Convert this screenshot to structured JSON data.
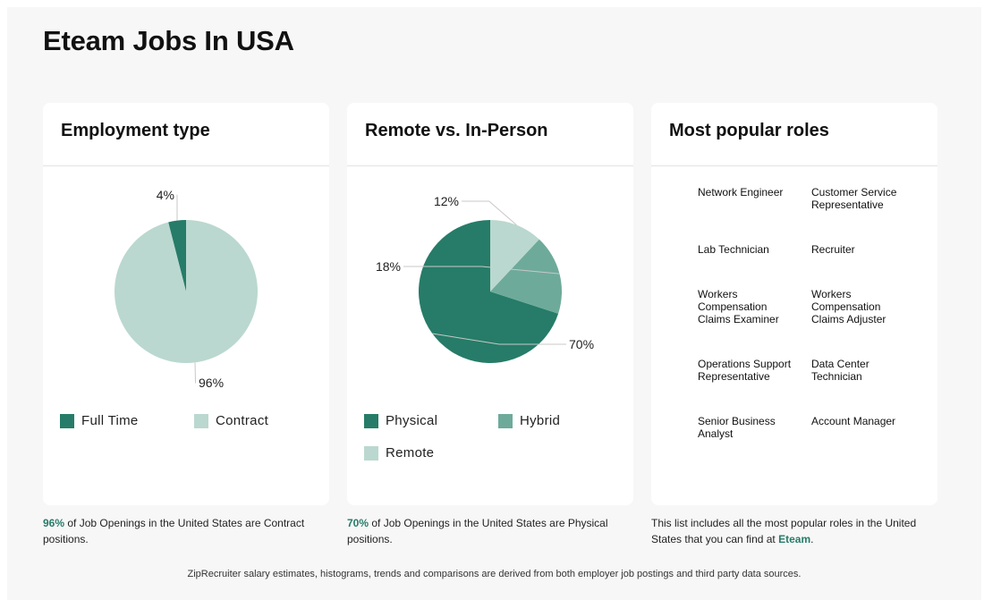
{
  "page": {
    "title": "Eteam Jobs In USA"
  },
  "colors": {
    "dark": "#267c68",
    "mid": "#6eaa9a",
    "light": "#bad8cf",
    "accent": "#267c68"
  },
  "employment": {
    "title": "Employment type",
    "legend": [
      "Full Time",
      "Contract"
    ],
    "caption_pct": "96%",
    "caption_text": " of Job Openings in the United States are Contract positions."
  },
  "remote": {
    "title": "Remote vs. In-Person",
    "legend": [
      "Physical",
      "Hybrid",
      "Remote"
    ],
    "caption_pct": "70%",
    "caption_text": " of Job Openings in the United States are Physical positions."
  },
  "roles": {
    "title": "Most popular roles",
    "items": [
      "Network Engineer",
      "Customer Service Representative",
      "Lab Technician",
      "Recruiter",
      "Workers Compensation Claims Examiner",
      "Workers Compensation Claims Adjuster",
      "Operations Support Representative",
      "Data Center Technician",
      "Senior Business Analyst",
      "Account Manager"
    ],
    "caption_pre": "This list includes all the most popular roles in the United States that you can find at ",
    "caption_brand": "Eteam",
    "caption_post": "."
  },
  "footer": "ZipRecruiter salary estimates, histograms, trends and comparisons are derived from both employer job postings and third party data sources.",
  "chart_data": [
    {
      "type": "pie",
      "title": "Employment type",
      "categories": [
        "Full Time",
        "Contract"
      ],
      "values": [
        4,
        96
      ],
      "labels": [
        "4%",
        "96%"
      ],
      "colors": [
        "#267c68",
        "#bad8cf"
      ],
      "legend": "bottom"
    },
    {
      "type": "pie",
      "title": "Remote vs. In-Person",
      "categories": [
        "Physical",
        "Hybrid",
        "Remote"
      ],
      "values": [
        70,
        18,
        12
      ],
      "labels": [
        "70%",
        "18%",
        "12%"
      ],
      "colors": [
        "#267c68",
        "#6eaa9a",
        "#bad8cf"
      ],
      "legend": "bottom"
    }
  ]
}
